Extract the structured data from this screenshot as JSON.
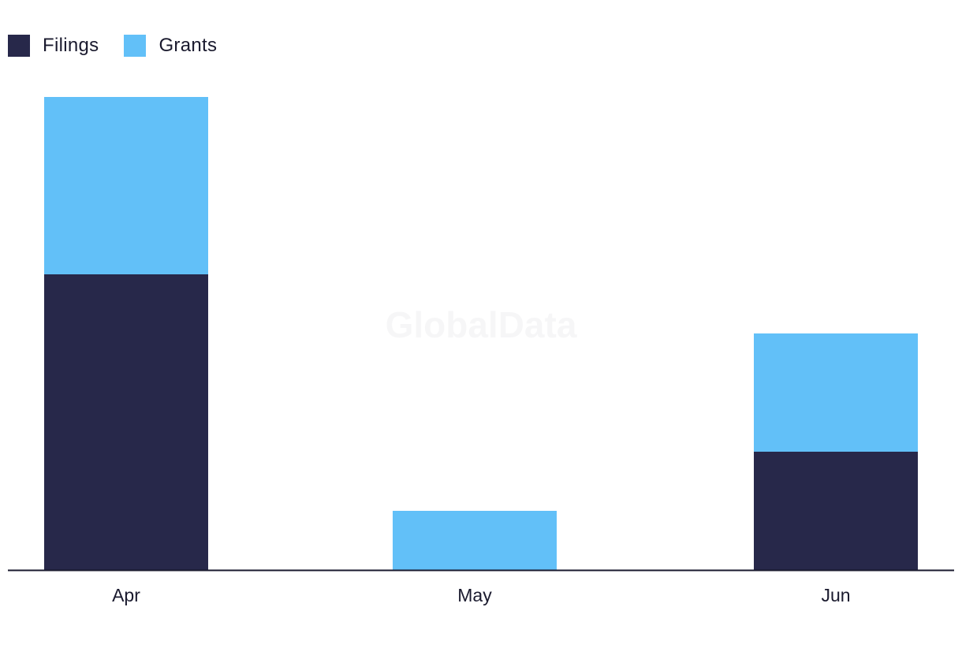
{
  "watermark": "GlobalData",
  "colors": {
    "filings": "#27284a",
    "grants": "#62c0f8",
    "axis": "#1a1a2e"
  },
  "chart_data": {
    "type": "bar",
    "stacked": true,
    "categories": [
      "Apr",
      "May",
      "Jun"
    ],
    "series": [
      {
        "name": "Filings",
        "values": [
          5,
          0,
          2
        ]
      },
      {
        "name": "Grants",
        "values": [
          3,
          1,
          2
        ]
      }
    ],
    "ylim": [
      0,
      8
    ],
    "grid": false,
    "legend": "top-left",
    "title": "",
    "xlabel": "",
    "ylabel": ""
  }
}
